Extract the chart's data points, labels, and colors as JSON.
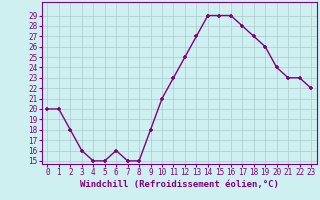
{
  "x": [
    0,
    1,
    2,
    3,
    4,
    5,
    6,
    7,
    8,
    9,
    10,
    11,
    12,
    13,
    14,
    15,
    16,
    17,
    18,
    19,
    20,
    21,
    22,
    23
  ],
  "y": [
    20,
    20,
    18,
    16,
    15,
    15,
    16,
    15,
    15,
    18,
    21,
    23,
    25,
    27,
    29,
    29,
    29,
    28,
    27,
    26,
    24,
    23,
    23,
    22
  ],
  "line_color": "#800080",
  "marker": "+",
  "bg_color": "#cff0f0",
  "grid_color": "#aacccc",
  "ylim_min": 15,
  "ylim_max": 30,
  "yticks": [
    15,
    16,
    17,
    18,
    19,
    20,
    21,
    22,
    23,
    24,
    25,
    26,
    27,
    28,
    29
  ],
  "xticks": [
    0,
    1,
    2,
    3,
    4,
    5,
    6,
    7,
    8,
    9,
    10,
    11,
    12,
    13,
    14,
    15,
    16,
    17,
    18,
    19,
    20,
    21,
    22,
    23
  ],
  "xlabel": "Windchill (Refroidissement éolien,°C)",
  "text_color": "#800080",
  "linewidth": 1.0,
  "markersize": 3,
  "tick_fontsize": 5.5,
  "xlabel_fontsize": 6.5
}
